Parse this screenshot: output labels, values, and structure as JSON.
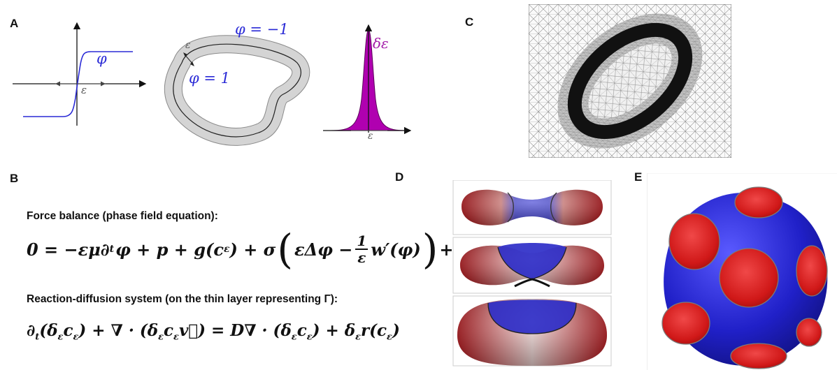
{
  "figure": {
    "labels": {
      "a": "A",
      "b": "B",
      "c": "C",
      "d": "D",
      "e": "E"
    },
    "panel_a": {
      "sigmoid_symbol": "φ",
      "epsilon": "ε",
      "outside_label": "φ = −1",
      "inside_label": "φ = 1",
      "delta_label": "δε",
      "colors": {
        "phi": "#2a2ad6",
        "delta": "#b000b0",
        "band": "#d4d4d4"
      }
    },
    "panel_b": {
      "heading1": "Force balance (phase field equation):",
      "heading2": "Reaction-diffusion system (on the thin layer representing Γ):",
      "equation1_a": "0 = −εμ∂",
      "equation1_b": "φ + p + g(c",
      "equation1_c": ") + σ",
      "equation1_d": "εΔφ −",
      "equation1_frac_num": "1",
      "equation1_frac_den": "ε",
      "equation1_e": "w′(φ)",
      "equation1_tail": "+",
      "equation1_ellipsis": "...",
      "sub_t": "t",
      "sub_eps": "ε",
      "equation2_a": "∂",
      "equation2_b": "(δ",
      "equation2_c": "c",
      "equation2_d": ") + ∇ · (δ",
      "equation2_e": "c",
      "equation2_f": "v⃗) = D∇ · (δ",
      "equation2_g": "c",
      "equation2_h": ") + δ",
      "equation2_i": "r(c",
      "equation2_j": ")"
    },
    "colors": {
      "red": "#d61e1e",
      "blue": "#2323c8",
      "mesh": "#9a9a9a"
    }
  }
}
